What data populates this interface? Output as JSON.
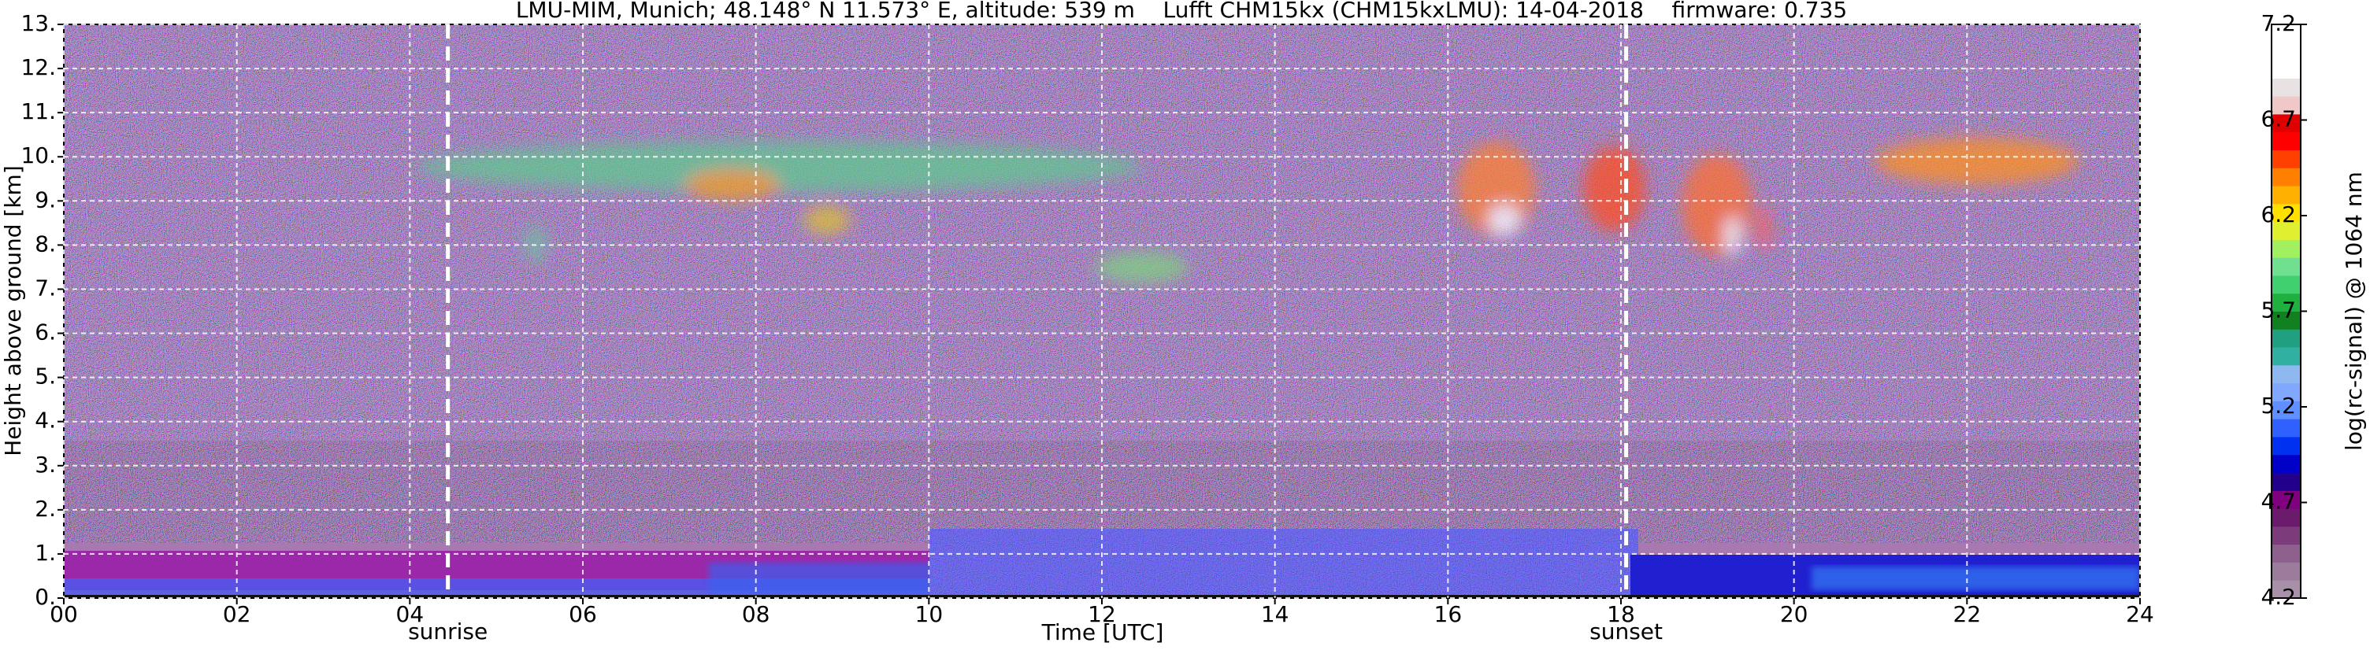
{
  "chart_data": {
    "type": "heatmap",
    "title": "LMU-MIM, Munich; 48.148° N 11.573° E, altitude: 539 m    Lufft CHM15kx (CHM15kxLMU): 14-04-2018    firmware: 0.735",
    "x_label": "Time [UTC]",
    "y_label": "Height above ground [km]",
    "xlim": [
      0,
      24
    ],
    "xticks": [
      {
        "value": 0,
        "label": "00"
      },
      {
        "value": 2,
        "label": "02"
      },
      {
        "value": 4,
        "label": "04"
      },
      {
        "value": 6,
        "label": "06"
      },
      {
        "value": 8,
        "label": "08"
      },
      10,
      12,
      14,
      16,
      18,
      20,
      22,
      24
    ],
    "ylim": [
      0,
      13
    ],
    "yticks": [
      {
        "value": 0,
        "label": "0."
      },
      {
        "value": 1,
        "label": "1."
      },
      {
        "value": 2,
        "label": "2."
      },
      {
        "value": 3,
        "label": "3."
      },
      {
        "value": 4,
        "label": "4."
      },
      {
        "value": 5,
        "label": "5."
      },
      {
        "value": 6,
        "label": "6."
      },
      {
        "value": 7,
        "label": "7."
      },
      {
        "value": 8,
        "label": "8."
      },
      {
        "value": 9,
        "label": "9."
      },
      {
        "value": 10,
        "label": "10."
      },
      {
        "value": 11,
        "label": "11."
      },
      {
        "value": 12,
        "label": "12."
      },
      {
        "value": 13,
        "label": "13."
      }
    ],
    "grid": true,
    "annotations": [
      {
        "x": 4.44,
        "label": "sunrise"
      },
      {
        "x": 18.06,
        "label": "sunset"
      }
    ],
    "colorbar": {
      "label": "log(rc-signal) @ 1064 nm",
      "lim": [
        4.2,
        7.2
      ],
      "ticks": [
        4.2,
        4.7,
        5.2,
        5.7,
        6.2,
        6.7,
        7.2
      ],
      "colors": [
        "#a890a8",
        "#9c7c9c",
        "#8e608e",
        "#7c3c7c",
        "#6c1a6c",
        "#800080",
        "#22008c",
        "#0000c8",
        "#0030f0",
        "#3060ff",
        "#6090ff",
        "#80a8ff",
        "#90b8f0",
        "#30b0a0",
        "#20a080",
        "#108020",
        "#20b040",
        "#40d070",
        "#70e090",
        "#a0f060",
        "#e0f030",
        "#ffe000",
        "#ffb000",
        "#ff8000",
        "#ff4000",
        "#ff0000",
        "#e00000",
        "#f0c8c8",
        "#e8e2e2",
        "#ffffff",
        "#ffffff",
        "#ffffff"
      ]
    }
  }
}
